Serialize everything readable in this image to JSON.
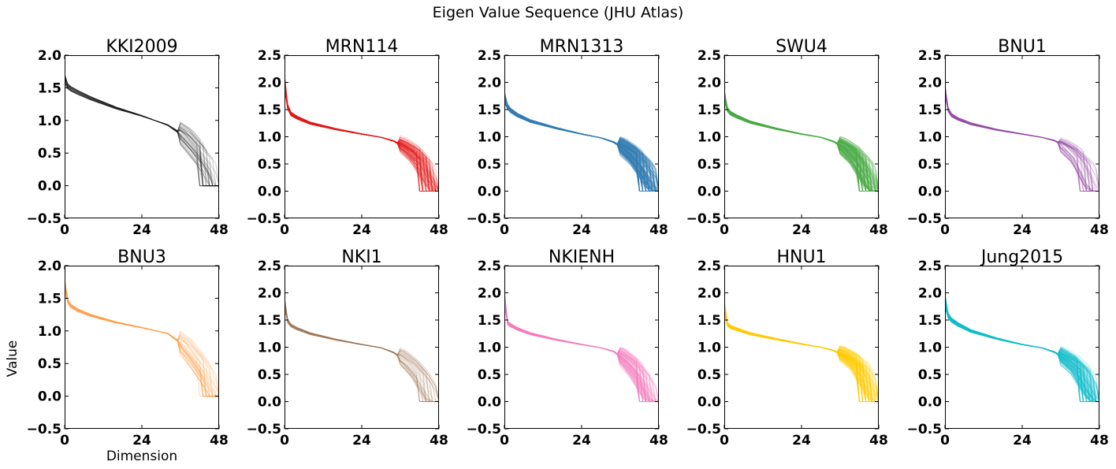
{
  "figure": {
    "title": "Eigen Value Sequence (JHU Atlas)",
    "xlabel": "Dimension",
    "ylabel": "Value"
  },
  "chart_data": [
    {
      "type": "line",
      "title": "KKI2009",
      "color": "#222222",
      "n_lines": 40,
      "ylim": [
        -0.5,
        2.0
      ],
      "yticks": [
        "2.0",
        "1.5",
        "1.0",
        "0.5",
        "0.0",
        "−0.5"
      ],
      "xlim": [
        0,
        48
      ],
      "xticks": [
        "0",
        "24",
        "48"
      ],
      "typical": {
        "x": [
          0,
          1,
          2,
          4,
          8,
          16,
          24,
          32,
          36,
          40,
          44,
          48
        ],
        "y": [
          1.62,
          1.52,
          1.48,
          1.43,
          1.34,
          1.19,
          1.07,
          0.93,
          0.8,
          0.58,
          0.33,
          0.0
        ]
      }
    },
    {
      "type": "line",
      "title": "MRN114",
      "color": "#e41a1c",
      "n_lines": 110,
      "ylim": [
        -0.5,
        2.5
      ],
      "yticks": [
        "2.5",
        "2.0",
        "1.5",
        "1.0",
        "0.5",
        "0.0",
        "−0.5"
      ],
      "xlim": [
        0,
        48
      ],
      "xticks": [
        "0",
        "24",
        "48"
      ],
      "typical": {
        "x": [
          0,
          1,
          2,
          4,
          8,
          16,
          24,
          30,
          34,
          38,
          42,
          46,
          48
        ],
        "y": [
          2.0,
          1.55,
          1.42,
          1.35,
          1.25,
          1.14,
          1.05,
          0.99,
          0.92,
          0.78,
          0.55,
          0.15,
          0.0
        ]
      }
    },
    {
      "type": "line",
      "title": "MRN1313",
      "color": "#377eb8",
      "n_lines": 260,
      "ylim": [
        -0.5,
        2.5
      ],
      "yticks": [
        "2.5",
        "2.0",
        "1.5",
        "1.0",
        "0.5",
        "0.0",
        "−0.5"
      ],
      "xlim": [
        0,
        48
      ],
      "xticks": [
        "0",
        "24",
        "48"
      ],
      "typical": {
        "x": [
          0,
          1,
          2,
          4,
          8,
          16,
          24,
          30,
          34,
          38,
          42,
          46,
          48
        ],
        "y": [
          1.72,
          1.55,
          1.48,
          1.4,
          1.29,
          1.16,
          1.05,
          0.98,
          0.9,
          0.75,
          0.52,
          0.15,
          0.0
        ]
      }
    },
    {
      "type": "line",
      "title": "SWU4",
      "color": "#4daf4a",
      "n_lines": 200,
      "ylim": [
        -0.5,
        2.5
      ],
      "yticks": [
        "2.5",
        "2.0",
        "1.5",
        "1.0",
        "0.5",
        "0.0",
        "−0.5"
      ],
      "xlim": [
        0,
        48
      ],
      "xticks": [
        "0",
        "24",
        "48"
      ],
      "typical": {
        "x": [
          0,
          1,
          2,
          4,
          8,
          16,
          24,
          30,
          34,
          38,
          42,
          46,
          48
        ],
        "y": [
          1.75,
          1.5,
          1.43,
          1.37,
          1.27,
          1.15,
          1.05,
          0.99,
          0.91,
          0.77,
          0.53,
          0.12,
          0.0
        ]
      }
    },
    {
      "type": "line",
      "title": "BNU1",
      "color": "#984ea3",
      "n_lines": 55,
      "ylim": [
        -0.5,
        2.5
      ],
      "yticks": [
        "2.5",
        "2.0",
        "1.5",
        "1.0",
        "0.5",
        "0.0",
        "−0.5"
      ],
      "xlim": [
        0,
        48
      ],
      "xticks": [
        "0",
        "24",
        "48"
      ],
      "typical": {
        "x": [
          0,
          1,
          2,
          4,
          8,
          16,
          24,
          30,
          34,
          38,
          42,
          46,
          48
        ],
        "y": [
          1.85,
          1.5,
          1.4,
          1.33,
          1.24,
          1.13,
          1.05,
          0.99,
          0.93,
          0.8,
          0.56,
          0.1,
          0.0
        ]
      }
    },
    {
      "type": "line",
      "title": "BNU3",
      "color": "#ff9f4a",
      "n_lines": 45,
      "ylim": [
        -0.5,
        2.0
      ],
      "yticks": [
        "2.0",
        "1.5",
        "1.0",
        "0.5",
        "0.0",
        "−0.5"
      ],
      "xlim": [
        0,
        48
      ],
      "xticks": [
        "0",
        "24",
        "48"
      ],
      "typical": {
        "x": [
          0,
          1,
          2,
          4,
          8,
          16,
          24,
          32,
          36,
          40,
          44,
          48
        ],
        "y": [
          1.7,
          1.45,
          1.38,
          1.32,
          1.24,
          1.13,
          1.05,
          0.96,
          0.82,
          0.58,
          0.3,
          0.0
        ]
      }
    },
    {
      "type": "line",
      "title": "NKI1",
      "color": "#a07858",
      "n_lines": 40,
      "ylim": [
        -0.5,
        2.5
      ],
      "yticks": [
        "2.5",
        "2.0",
        "1.5",
        "1.0",
        "0.5",
        "0.0",
        "−0.5"
      ],
      "xlim": [
        0,
        48
      ],
      "xticks": [
        "0",
        "24",
        "48"
      ],
      "typical": {
        "x": [
          0,
          1,
          2,
          4,
          8,
          16,
          24,
          30,
          34,
          38,
          42,
          46,
          48
        ],
        "y": [
          1.8,
          1.48,
          1.4,
          1.34,
          1.25,
          1.14,
          1.05,
          0.99,
          0.9,
          0.72,
          0.45,
          0.05,
          0.0
        ]
      }
    },
    {
      "type": "line",
      "title": "NKIENH",
      "color": "#f781bf",
      "n_lines": 120,
      "ylim": [
        -0.5,
        2.5
      ],
      "yticks": [
        "2.5",
        "2.0",
        "1.5",
        "1.0",
        "0.5",
        "0.0",
        "−0.5"
      ],
      "xlim": [
        0,
        48
      ],
      "xticks": [
        "0",
        "24",
        "48"
      ],
      "typical": {
        "x": [
          0,
          1,
          2,
          4,
          8,
          16,
          24,
          30,
          34,
          38,
          42,
          46,
          48
        ],
        "y": [
          1.9,
          1.45,
          1.4,
          1.34,
          1.25,
          1.14,
          1.05,
          0.99,
          0.92,
          0.74,
          0.45,
          0.05,
          0.0
        ]
      }
    },
    {
      "type": "line",
      "title": "HNU1",
      "color": "#ffcc00",
      "n_lines": 150,
      "ylim": [
        -0.5,
        2.5
      ],
      "yticks": [
        "2.5",
        "2.0",
        "1.5",
        "1.0",
        "0.5",
        "0.0",
        "−0.5"
      ],
      "xlim": [
        0,
        48
      ],
      "xticks": [
        "0",
        "24",
        "48"
      ],
      "typical": {
        "x": [
          0,
          1,
          2,
          4,
          8,
          16,
          24,
          30,
          34,
          38,
          42,
          46,
          48
        ],
        "y": [
          1.75,
          1.42,
          1.37,
          1.33,
          1.25,
          1.15,
          1.06,
          1.0,
          0.94,
          0.82,
          0.62,
          0.2,
          0.0
        ]
      }
    },
    {
      "type": "line",
      "title": "Jung2015",
      "color": "#17becf",
      "n_lines": 160,
      "ylim": [
        -0.5,
        2.5
      ],
      "yticks": [
        "2.5",
        "2.0",
        "1.5",
        "1.0",
        "0.5",
        "0.0",
        "−0.5"
      ],
      "xlim": [
        0,
        48
      ],
      "xticks": [
        "0",
        "24",
        "48"
      ],
      "typical": {
        "x": [
          0,
          1,
          2,
          4,
          8,
          16,
          24,
          30,
          34,
          38,
          42,
          46,
          48
        ],
        "y": [
          1.85,
          1.58,
          1.5,
          1.42,
          1.3,
          1.16,
          1.05,
          0.99,
          0.91,
          0.77,
          0.55,
          0.15,
          0.0
        ]
      }
    }
  ]
}
